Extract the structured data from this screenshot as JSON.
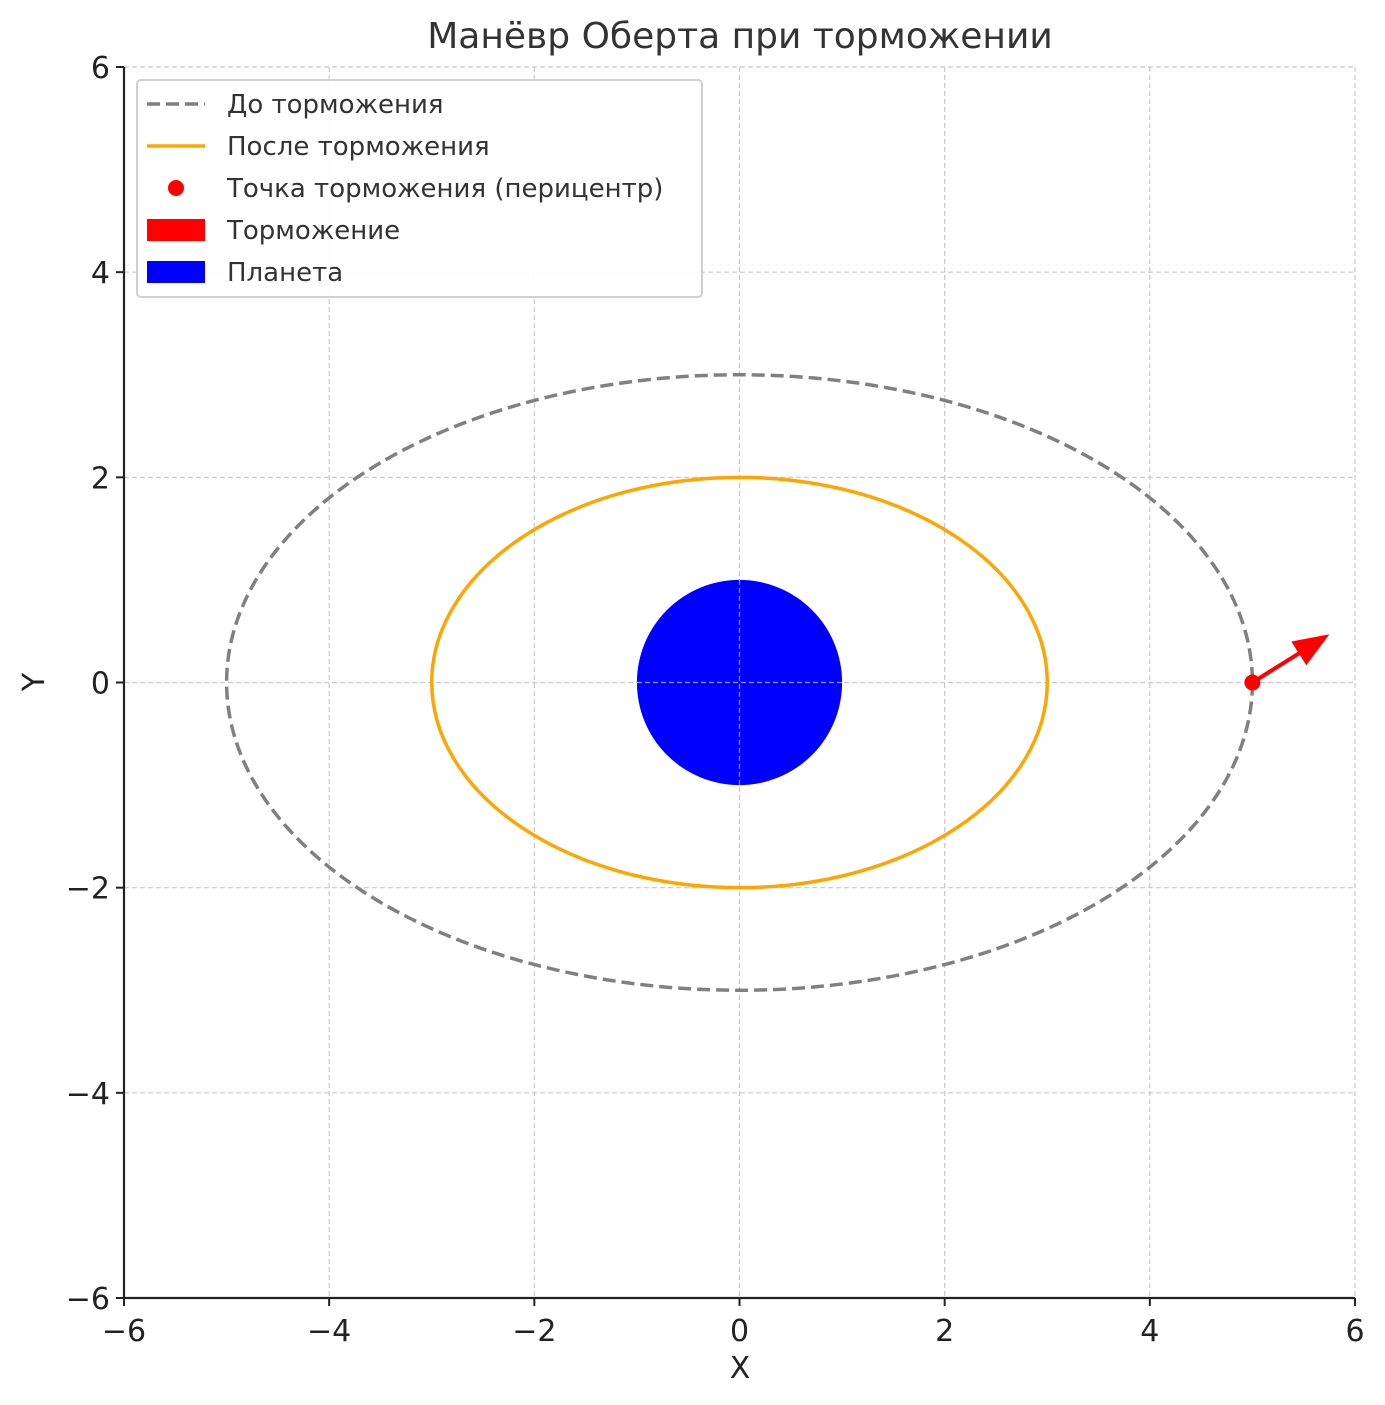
{
  "chart_data": {
    "type": "line",
    "title": "Манёвр Оберта при торможении",
    "xlabel": "X",
    "ylabel": "Y",
    "xlim": [
      -6,
      6
    ],
    "ylim": [
      -6,
      6
    ],
    "xticks": [
      -6,
      -4,
      -2,
      0,
      2,
      4,
      6
    ],
    "yticks": [
      -6,
      -4,
      -2,
      0,
      2,
      4,
      6
    ],
    "xtick_labels": [
      "−6",
      "−4",
      "−2",
      "0",
      "2",
      "4",
      "6"
    ],
    "ytick_labels": [
      "−6",
      "−4",
      "−2",
      "0",
      "2",
      "4",
      "6"
    ],
    "grid": true,
    "legend_position": "top-left",
    "series": [
      {
        "name": "До торможения",
        "shape": "ellipse",
        "center": [
          0,
          0
        ],
        "semi_axis_x": 5,
        "semi_axis_y": 3,
        "style": "dashed",
        "color": "#808080"
      },
      {
        "name": "После торможения",
        "shape": "ellipse",
        "center": [
          0,
          0
        ],
        "semi_axis_x": 3,
        "semi_axis_y": 2,
        "style": "solid",
        "color": "#FFA500"
      },
      {
        "name": "Точка торможения (перицентр)",
        "shape": "point",
        "x": 5,
        "y": 0,
        "color": "#FF0000"
      },
      {
        "name": "Торможение",
        "shape": "arrow",
        "from": [
          5,
          0
        ],
        "to": [
          5.75,
          0.47
        ],
        "color": "#FF0000"
      },
      {
        "name": "Планета",
        "shape": "circle",
        "center": [
          0,
          0
        ],
        "radius": 1,
        "color": "#0000FF"
      }
    ]
  }
}
